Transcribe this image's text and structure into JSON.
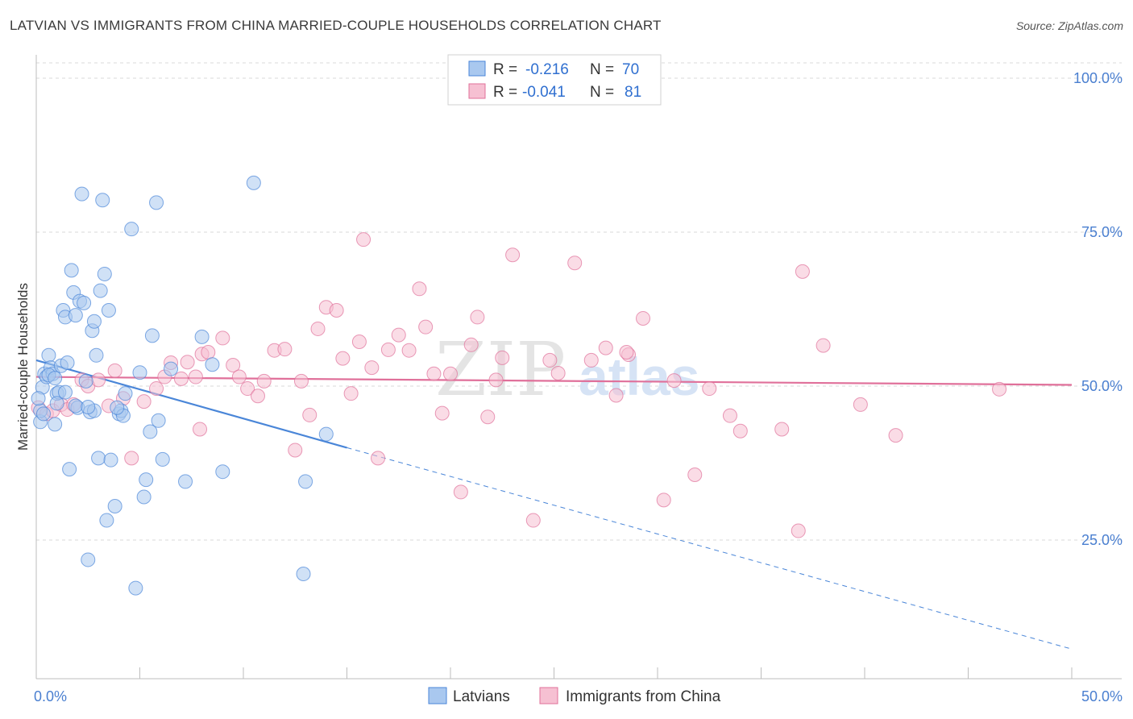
{
  "title": "LATVIAN VS IMMIGRANTS FROM CHINA MARRIED-COUPLE HOUSEHOLDS CORRELATION CHART",
  "source": "Source: ZipAtlas.com",
  "colors": {
    "blue": "#4a86d8",
    "blue_fill": "#a9c8ef",
    "pink": "#e0709a",
    "pink_fill": "#f6c0d2",
    "axis_label": "#4a7fd0",
    "grid": "#d9d9d9"
  },
  "chart_data": {
    "type": "scatter",
    "title": "LATVIAN VS IMMIGRANTS FROM CHINA MARRIED-COUPLE HOUSEHOLDS CORRELATION CHART",
    "xlabel": "",
    "ylabel": "Married-couple Households",
    "xlim": [
      0,
      50
    ],
    "ylim": [
      0,
      105
    ],
    "x_tick_labels": [
      "0.0%",
      "50.0%"
    ],
    "y_ticks": [
      25,
      50,
      75,
      100
    ],
    "y_tick_labels": [
      "25.0%",
      "50.0%",
      "75.0%",
      "100.0%"
    ],
    "grid": true,
    "legend_top": [
      {
        "r_label": "R =",
        "r_value": "-0.216",
        "n_label": "N =",
        "n_value": "70"
      },
      {
        "r_label": "R =",
        "r_value": "-0.041",
        "n_label": "N =",
        "n_value": "81"
      }
    ],
    "series": [
      {
        "name": "Latvians",
        "color": "#4a86d8",
        "trend": {
          "x": [
            0,
            15
          ],
          "y": [
            54.2,
            40.0
          ],
          "dashed_to": [
            50,
            7.3
          ]
        },
        "points": [
          [
            0.2,
            44.2
          ],
          [
            0.3,
            49.8
          ],
          [
            0.4,
            52.0
          ],
          [
            0.5,
            51.5
          ],
          [
            0.6,
            55.0
          ],
          [
            0.7,
            53.0
          ],
          [
            0.8,
            52.0
          ],
          [
            0.9,
            43.8
          ],
          [
            1.0,
            48.8
          ],
          [
            1.1,
            49.0
          ],
          [
            1.2,
            53.3
          ],
          [
            1.3,
            62.3
          ],
          [
            1.4,
            61.2
          ],
          [
            1.5,
            53.8
          ],
          [
            1.6,
            36.5
          ],
          [
            1.7,
            68.8
          ],
          [
            1.8,
            65.2
          ],
          [
            1.9,
            61.5
          ],
          [
            2.0,
            46.5
          ],
          [
            2.1,
            63.8
          ],
          [
            2.2,
            81.2
          ],
          [
            2.3,
            63.5
          ],
          [
            2.4,
            50.8
          ],
          [
            2.5,
            21.8
          ],
          [
            2.6,
            45.8
          ],
          [
            2.7,
            59.0
          ],
          [
            2.8,
            60.5
          ],
          [
            2.9,
            55.0
          ],
          [
            3.0,
            38.3
          ],
          [
            3.1,
            65.5
          ],
          [
            3.2,
            80.2
          ],
          [
            3.3,
            68.2
          ],
          [
            3.4,
            28.2
          ],
          [
            3.5,
            62.3
          ],
          [
            3.6,
            38.0
          ],
          [
            3.8,
            30.5
          ],
          [
            4.0,
            45.5
          ],
          [
            4.1,
            46.0
          ],
          [
            4.3,
            48.8
          ],
          [
            4.6,
            75.5
          ],
          [
            4.8,
            17.2
          ],
          [
            5.0,
            52.2
          ],
          [
            5.2,
            32.0
          ],
          [
            5.3,
            34.8
          ],
          [
            5.5,
            42.6
          ],
          [
            5.6,
            58.2
          ],
          [
            5.8,
            79.8
          ],
          [
            5.9,
            44.4
          ],
          [
            6.1,
            38.1
          ],
          [
            6.5,
            52.8
          ],
          [
            7.2,
            34.5
          ],
          [
            8.0,
            58.0
          ],
          [
            8.5,
            53.5
          ],
          [
            9.0,
            36.1
          ],
          [
            10.5,
            83.0
          ],
          [
            12.9,
            19.5
          ],
          [
            13.0,
            34.5
          ],
          [
            14.0,
            42.2
          ],
          [
            0.2,
            46.0
          ],
          [
            0.6,
            51.8
          ],
          [
            1.0,
            47.2
          ],
          [
            1.9,
            46.8
          ],
          [
            2.8,
            46.0
          ],
          [
            4.2,
            45.2
          ],
          [
            0.9,
            51.3
          ],
          [
            1.4,
            49.0
          ],
          [
            0.1,
            48.0
          ],
          [
            0.35,
            45.5
          ],
          [
            3.9,
            46.5
          ],
          [
            2.5,
            46.6
          ]
        ]
      },
      {
        "name": "Immigrants from China",
        "color": "#e0709a",
        "trend": {
          "x": [
            0,
            50
          ],
          "y": [
            51.5,
            50.2
          ]
        },
        "points": [
          [
            0.1,
            46.5
          ],
          [
            0.5,
            45.5
          ],
          [
            0.8,
            46.0
          ],
          [
            1.2,
            47.0
          ],
          [
            1.5,
            46.2
          ],
          [
            1.8,
            47.0
          ],
          [
            2.2,
            51.0
          ],
          [
            2.5,
            50.0
          ],
          [
            3.0,
            51.0
          ],
          [
            3.5,
            46.8
          ],
          [
            3.8,
            52.5
          ],
          [
            4.2,
            48.0
          ],
          [
            4.6,
            38.3
          ],
          [
            5.2,
            47.5
          ],
          [
            5.8,
            49.6
          ],
          [
            6.2,
            51.5
          ],
          [
            6.5,
            53.8
          ],
          [
            7.0,
            51.2
          ],
          [
            7.3,
            53.9
          ],
          [
            7.7,
            51.5
          ],
          [
            7.9,
            43.0
          ],
          [
            8.0,
            55.2
          ],
          [
            8.3,
            55.5
          ],
          [
            9.0,
            57.8
          ],
          [
            9.5,
            53.4
          ],
          [
            9.8,
            51.5
          ],
          [
            10.2,
            49.6
          ],
          [
            10.7,
            48.4
          ],
          [
            11.0,
            50.8
          ],
          [
            11.5,
            55.8
          ],
          [
            12.0,
            56.0
          ],
          [
            12.5,
            39.6
          ],
          [
            12.8,
            50.8
          ],
          [
            13.2,
            45.3
          ],
          [
            13.6,
            59.3
          ],
          [
            14.0,
            62.8
          ],
          [
            14.5,
            62.3
          ],
          [
            14.8,
            54.5
          ],
          [
            15.2,
            48.8
          ],
          [
            15.6,
            57.2
          ],
          [
            15.8,
            73.8
          ],
          [
            16.2,
            53.0
          ],
          [
            16.5,
            38.3
          ],
          [
            17.0,
            55.9
          ],
          [
            17.5,
            58.3
          ],
          [
            18.0,
            55.8
          ],
          [
            18.5,
            65.8
          ],
          [
            18.8,
            59.6
          ],
          [
            19.2,
            52.0
          ],
          [
            19.6,
            45.6
          ],
          [
            20.0,
            52.0
          ],
          [
            20.5,
            32.8
          ],
          [
            21.0,
            56.7
          ],
          [
            21.3,
            61.2
          ],
          [
            21.8,
            45.0
          ],
          [
            22.2,
            51.0
          ],
          [
            22.5,
            54.6
          ],
          [
            23.0,
            71.3
          ],
          [
            24.0,
            28.2
          ],
          [
            24.8,
            54.2
          ],
          [
            25.2,
            52.1
          ],
          [
            26.0,
            70.0
          ],
          [
            26.8,
            54.2
          ],
          [
            27.5,
            56.2
          ],
          [
            28.0,
            48.5
          ],
          [
            28.6,
            55.1
          ],
          [
            29.3,
            61.0
          ],
          [
            30.3,
            31.5
          ],
          [
            30.8,
            50.9
          ],
          [
            31.8,
            35.6
          ],
          [
            32.5,
            49.6
          ],
          [
            33.5,
            45.2
          ],
          [
            34.0,
            42.7
          ],
          [
            36.0,
            43.0
          ],
          [
            36.8,
            26.5
          ],
          [
            37.0,
            68.6
          ],
          [
            38.0,
            56.6
          ],
          [
            39.8,
            47.0
          ],
          [
            41.5,
            42.0
          ],
          [
            46.5,
            49.5
          ],
          [
            28.5,
            55.5
          ]
        ]
      }
    ]
  },
  "legend_bottom": [
    {
      "label": "Latvians"
    },
    {
      "label": "Immigrants from China"
    }
  ],
  "watermark": {
    "zip": "ZIP",
    "atlas": "atlas"
  }
}
